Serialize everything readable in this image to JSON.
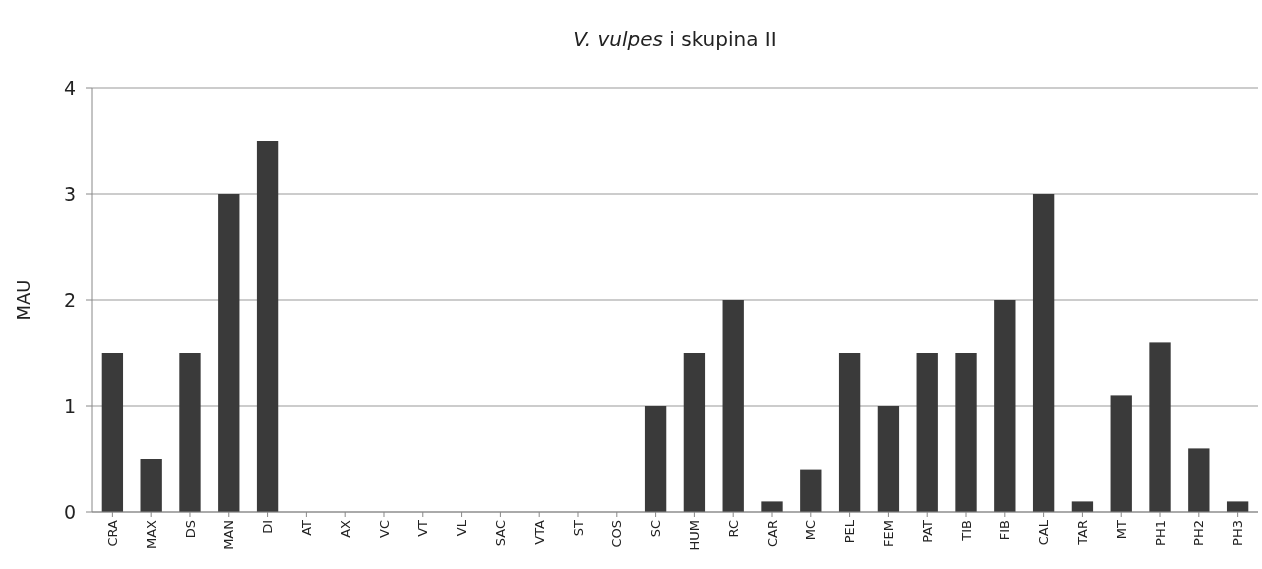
{
  "chart_data": {
    "type": "bar",
    "title": "V. vulpes i skupina II",
    "ylabel": "MAU",
    "categories": [
      "CRA",
      "MAX",
      "DS",
      "MAN",
      "DI",
      "AT",
      "AX",
      "VC",
      "VT",
      "VL",
      "SAC",
      "VTA",
      "ST",
      "COS",
      "SC",
      "HUM",
      "RC",
      "CAR",
      "MC",
      "PEL",
      "FEM",
      "PAT",
      "TIB",
      "FIB",
      "CAL",
      "TAR",
      "MT",
      "PH1",
      "PH2",
      "PH3"
    ],
    "values": [
      1.5,
      0.5,
      1.5,
      3,
      3.5,
      0,
      0,
      0,
      0,
      0,
      0,
      0,
      0,
      0,
      1,
      1.5,
      2,
      0.1,
      0.4,
      1.5,
      1,
      1.5,
      1.5,
      2,
      3,
      0.1,
      1.1,
      1.6,
      0.6,
      0.1
    ],
    "color": "#3a3a3a",
    "ylim": [
      0,
      4
    ],
    "yticks": [
      0,
      1,
      2,
      3,
      4
    ],
    "grid": "y"
  }
}
